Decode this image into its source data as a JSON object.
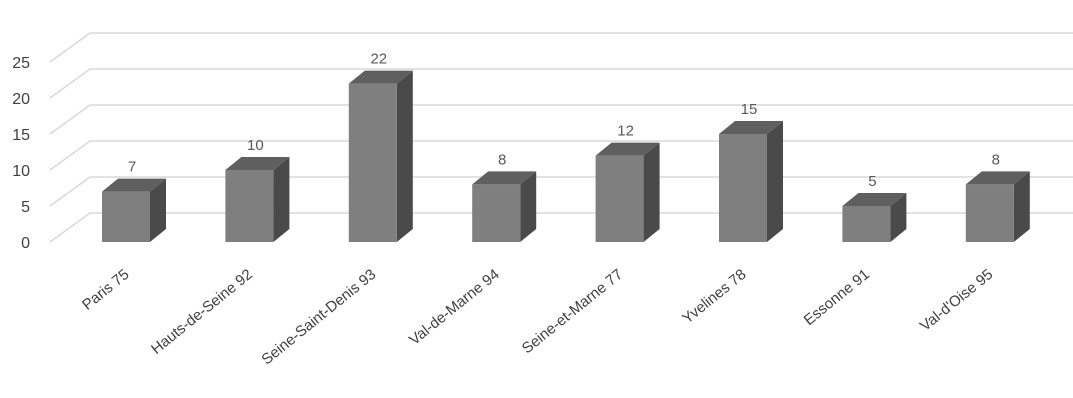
{
  "chart_data": {
    "type": "bar",
    "title": "",
    "xlabel": "",
    "ylabel": "",
    "categories": [
      "Paris 75",
      "Hauts-de-Seine 92",
      "Seine-Saint-Denis 93",
      "Val-de-Marne 94",
      "Seine-et-Marne 77",
      "Yvelines 78",
      "Essonne 91",
      "Val-d'Oise 95"
    ],
    "values": [
      7,
      10,
      22,
      8,
      12,
      15,
      5,
      8
    ],
    "ylim": [
      0,
      25
    ],
    "yticks": [
      0,
      5,
      10,
      15,
      20,
      25
    ],
    "grid": true,
    "legend": "none",
    "style": "3d-column",
    "colors": {
      "front": "#7f7f7f",
      "top": "#5f5f5f",
      "side": "#4a4a4a",
      "grid": "#d9d9d9"
    }
  }
}
